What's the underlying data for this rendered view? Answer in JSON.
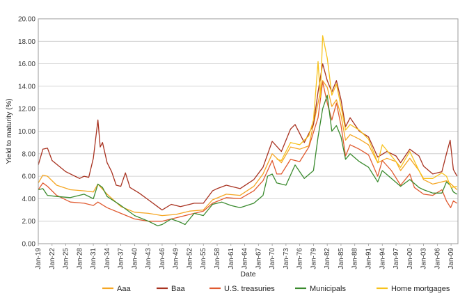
{
  "chart_data": {
    "type": "line",
    "title": "",
    "xlabel": "Date",
    "ylabel": "Yield to maturity (%)",
    "ylim": [
      0,
      20
    ],
    "xlim": [
      1919,
      2010.5
    ],
    "yticks": [
      "0.00",
      "2.00",
      "4.00",
      "6.00",
      "8.00",
      "10.00",
      "12.00",
      "14.00",
      "16.00",
      "18.00",
      "20.00"
    ],
    "xticks": [
      "Jan-19",
      "Jan-22",
      "Jan-25",
      "Jan-28",
      "Jan-31",
      "Jan-34",
      "Jan-37",
      "Jan-40",
      "Jan-43",
      "Jan-46",
      "Jan-49",
      "Jan-52",
      "Jan-55",
      "Jan-58",
      "Jan-61",
      "Jan-64",
      "Jan-67",
      "Jan-70",
      "Jan-73",
      "Jan-76",
      "Jan-79",
      "Jan-82",
      "Jan-85",
      "Jan-88",
      "Jan-91",
      "Jan-94",
      "Jan-97",
      "Jan-00",
      "Jan-03",
      "Jan-06",
      "Jan-09"
    ],
    "xtick_years": [
      1919,
      1922,
      1925,
      1928,
      1931,
      1934,
      1937,
      1940,
      1943,
      1946,
      1949,
      1952,
      1955,
      1958,
      1961,
      1964,
      1967,
      1970,
      1973,
      1976,
      1979,
      1982,
      1985,
      1988,
      1991,
      1994,
      1997,
      2000,
      2003,
      2006,
      2009
    ],
    "grid": true,
    "legend_position": "bottom",
    "series": [
      {
        "name": "Aaa",
        "color": "#f5a623",
        "points": [
          [
            1919,
            5.4
          ],
          [
            1920,
            6.1
          ],
          [
            1921,
            6.0
          ],
          [
            1923,
            5.2
          ],
          [
            1926,
            4.8
          ],
          [
            1929,
            4.7
          ],
          [
            1931,
            4.6
          ],
          [
            1932,
            5.3
          ],
          [
            1934,
            4.4
          ],
          [
            1937,
            3.3
          ],
          [
            1940,
            2.8
          ],
          [
            1943,
            2.7
          ],
          [
            1946,
            2.5
          ],
          [
            1949,
            2.6
          ],
          [
            1952,
            2.9
          ],
          [
            1955,
            3.0
          ],
          [
            1957,
            3.9
          ],
          [
            1960,
            4.4
          ],
          [
            1963,
            4.3
          ],
          [
            1966,
            5.1
          ],
          [
            1968,
            6.2
          ],
          [
            1970,
            8.0
          ],
          [
            1972,
            7.2
          ],
          [
            1974,
            8.6
          ],
          [
            1976,
            8.4
          ],
          [
            1978,
            8.7
          ],
          [
            1980,
            12.5
          ],
          [
            1981,
            14.5
          ],
          [
            1982,
            13.9
          ],
          [
            1983,
            12.2
          ],
          [
            1984,
            12.8
          ],
          [
            1985,
            11.4
          ],
          [
            1986,
            9.2
          ],
          [
            1987,
            9.7
          ],
          [
            1989,
            9.3
          ],
          [
            1991,
            8.8
          ],
          [
            1993,
            7.2
          ],
          [
            1995,
            7.6
          ],
          [
            1997,
            7.3
          ],
          [
            1998,
            6.5
          ],
          [
            2000,
            7.6
          ],
          [
            2002,
            6.5
          ],
          [
            2003,
            5.7
          ],
          [
            2005,
            5.3
          ],
          [
            2007,
            5.5
          ],
          [
            2008,
            5.6
          ],
          [
            2009,
            5.3
          ],
          [
            2010.3,
            4.8
          ]
        ]
      },
      {
        "name": "Baa",
        "color": "#a83220",
        "points": [
          [
            1919,
            7.0
          ],
          [
            1920,
            8.4
          ],
          [
            1921,
            8.5
          ],
          [
            1922,
            7.4
          ],
          [
            1925,
            6.4
          ],
          [
            1928,
            5.8
          ],
          [
            1929,
            6.0
          ],
          [
            1930,
            5.9
          ],
          [
            1931,
            7.6
          ],
          [
            1932,
            11.0
          ],
          [
            1932.5,
            8.6
          ],
          [
            1933,
            9.0
          ],
          [
            1934,
            7.2
          ],
          [
            1935,
            6.4
          ],
          [
            1936,
            5.2
          ],
          [
            1937,
            5.1
          ],
          [
            1938,
            6.3
          ],
          [
            1939,
            5.0
          ],
          [
            1941,
            4.5
          ],
          [
            1943,
            3.9
          ],
          [
            1945,
            3.3
          ],
          [
            1946,
            3.0
          ],
          [
            1948,
            3.5
          ],
          [
            1950,
            3.3
          ],
          [
            1953,
            3.6
          ],
          [
            1955,
            3.6
          ],
          [
            1957,
            4.7
          ],
          [
            1958,
            4.9
          ],
          [
            1960,
            5.2
          ],
          [
            1963,
            4.9
          ],
          [
            1966,
            5.7
          ],
          [
            1968,
            6.8
          ],
          [
            1970,
            9.1
          ],
          [
            1972,
            8.2
          ],
          [
            1974,
            10.2
          ],
          [
            1975,
            10.6
          ],
          [
            1977,
            9.0
          ],
          [
            1979,
            10.6
          ],
          [
            1980,
            13.5
          ],
          [
            1981,
            16.0
          ],
          [
            1982,
            14.5
          ],
          [
            1983,
            13.5
          ],
          [
            1984,
            14.5
          ],
          [
            1985,
            12.8
          ],
          [
            1986,
            10.4
          ],
          [
            1987,
            11.2
          ],
          [
            1989,
            10.0
          ],
          [
            1991,
            9.5
          ],
          [
            1993,
            7.7
          ],
          [
            1995,
            8.2
          ],
          [
            1997,
            7.8
          ],
          [
            1998,
            7.2
          ],
          [
            2000,
            8.4
          ],
          [
            2002,
            7.8
          ],
          [
            2003,
            6.9
          ],
          [
            2005,
            6.2
          ],
          [
            2007,
            6.4
          ],
          [
            2008,
            8.0
          ],
          [
            2008.8,
            9.2
          ],
          [
            2009.5,
            6.6
          ],
          [
            2010.3,
            6.0
          ]
        ]
      },
      {
        "name": "U.S. treasuries",
        "color": "#e05a30",
        "points": [
          [
            1919,
            4.8
          ],
          [
            1920,
            5.4
          ],
          [
            1921,
            5.1
          ],
          [
            1923,
            4.3
          ],
          [
            1926,
            3.7
          ],
          [
            1929,
            3.6
          ],
          [
            1931,
            3.4
          ],
          [
            1932,
            3.7
          ],
          [
            1934,
            3.2
          ],
          [
            1937,
            2.7
          ],
          [
            1940,
            2.2
          ],
          [
            1943,
            2.0
          ],
          [
            1946,
            2.0
          ],
          [
            1949,
            2.3
          ],
          [
            1952,
            2.6
          ],
          [
            1955,
            2.9
          ],
          [
            1957,
            3.6
          ],
          [
            1960,
            4.1
          ],
          [
            1963,
            4.0
          ],
          [
            1966,
            4.7
          ],
          [
            1968,
            5.6
          ],
          [
            1970,
            7.4
          ],
          [
            1971,
            6.2
          ],
          [
            1972,
            6.2
          ],
          [
            1974,
            7.5
          ],
          [
            1976,
            7.3
          ],
          [
            1978,
            8.6
          ],
          [
            1980,
            11.2
          ],
          [
            1981,
            14.4
          ],
          [
            1982,
            12.5
          ],
          [
            1983,
            11.0
          ],
          [
            1984,
            12.5
          ],
          [
            1985,
            10.5
          ],
          [
            1986,
            7.8
          ],
          [
            1987,
            8.8
          ],
          [
            1989,
            8.4
          ],
          [
            1991,
            7.9
          ],
          [
            1993,
            6.0
          ],
          [
            1994,
            7.4
          ],
          [
            1996,
            6.5
          ],
          [
            1998,
            5.2
          ],
          [
            2000,
            6.2
          ],
          [
            2001,
            5.0
          ],
          [
            2003,
            4.4
          ],
          [
            2005,
            4.3
          ],
          [
            2007,
            4.8
          ],
          [
            2008,
            3.8
          ],
          [
            2008.9,
            3.2
          ],
          [
            2009.5,
            3.8
          ],
          [
            2010.3,
            3.6
          ]
        ]
      },
      {
        "name": "Municipals",
        "color": "#3a8a2e",
        "points": [
          [
            1919,
            4.8
          ],
          [
            1920,
            4.9
          ],
          [
            1921,
            4.3
          ],
          [
            1923,
            4.2
          ],
          [
            1926,
            4.1
          ],
          [
            1929,
            4.4
          ],
          [
            1931,
            4.0
          ],
          [
            1932,
            5.3
          ],
          [
            1933,
            5.0
          ],
          [
            1934,
            4.2
          ],
          [
            1937,
            3.4
          ],
          [
            1940,
            2.5
          ],
          [
            1943,
            2.0
          ],
          [
            1945,
            1.6
          ],
          [
            1946,
            1.7
          ],
          [
            1948,
            2.2
          ],
          [
            1950,
            1.9
          ],
          [
            1951,
            1.7
          ],
          [
            1953,
            2.7
          ],
          [
            1955,
            2.5
          ],
          [
            1957,
            3.5
          ],
          [
            1959,
            3.7
          ],
          [
            1961,
            3.4
          ],
          [
            1963,
            3.2
          ],
          [
            1966,
            3.6
          ],
          [
            1968,
            4.3
          ],
          [
            1969,
            6.0
          ],
          [
            1970,
            6.2
          ],
          [
            1971,
            5.4
          ],
          [
            1973,
            5.2
          ],
          [
            1975,
            7.0
          ],
          [
            1977,
            5.8
          ],
          [
            1979,
            6.5
          ],
          [
            1980,
            9.5
          ],
          [
            1981,
            12.0
          ],
          [
            1982,
            13.2
          ],
          [
            1983,
            10.0
          ],
          [
            1984,
            10.5
          ],
          [
            1985,
            9.5
          ],
          [
            1986,
            7.5
          ],
          [
            1987,
            8.0
          ],
          [
            1989,
            7.3
          ],
          [
            1991,
            6.8
          ],
          [
            1993,
            5.5
          ],
          [
            1994,
            6.5
          ],
          [
            1996,
            5.8
          ],
          [
            1998,
            5.1
          ],
          [
            2000,
            5.7
          ],
          [
            2002,
            5.0
          ],
          [
            2003,
            4.8
          ],
          [
            2005,
            4.5
          ],
          [
            2007,
            4.5
          ],
          [
            2008,
            5.5
          ],
          [
            2008.8,
            5.2
          ],
          [
            2009.5,
            4.6
          ],
          [
            2010.3,
            4.4
          ]
        ]
      },
      {
        "name": "Home mortgages",
        "color": "#f7c21b",
        "points": [
          [
            1971,
            7.5
          ],
          [
            1972,
            7.4
          ],
          [
            1974,
            9.0
          ],
          [
            1976,
            8.8
          ],
          [
            1978,
            9.6
          ],
          [
            1979,
            11.0
          ],
          [
            1980,
            16.2
          ],
          [
            1980.5,
            13.0
          ],
          [
            1981,
            18.5
          ],
          [
            1982,
            16.5
          ],
          [
            1983,
            13.2
          ],
          [
            1984,
            14.2
          ],
          [
            1985,
            12.2
          ],
          [
            1986,
            10.1
          ],
          [
            1987,
            10.6
          ],
          [
            1989,
            10.1
          ],
          [
            1991,
            9.3
          ],
          [
            1993,
            7.2
          ],
          [
            1994,
            8.8
          ],
          [
            1996,
            7.8
          ],
          [
            1998,
            6.8
          ],
          [
            2000,
            8.2
          ],
          [
            2002,
            6.5
          ],
          [
            2003,
            5.8
          ],
          [
            2005,
            5.8
          ],
          [
            2007,
            6.3
          ],
          [
            2008,
            6.0
          ],
          [
            2009,
            5.0
          ],
          [
            2010.3,
            5.1
          ]
        ]
      }
    ]
  }
}
